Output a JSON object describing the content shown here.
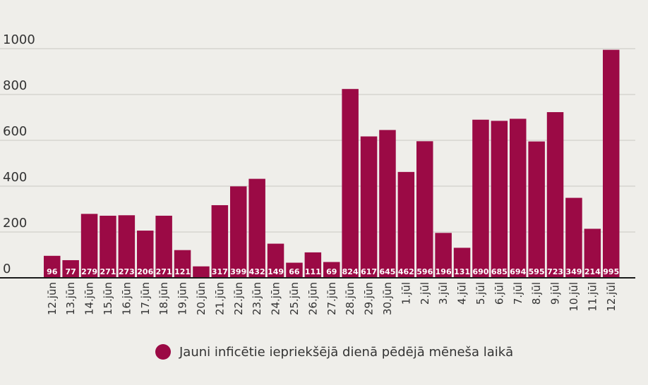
{
  "chart_data": {
    "type": "bar",
    "categories": [
      "12.jūn",
      "13.jūn",
      "14.jūn",
      "15.jūn",
      "16.jūn",
      "17.jūn",
      "18.jūn",
      "19.jūn",
      "20.jūn",
      "21.jūn",
      "22.jūn",
      "23.jūn",
      "24.jūn",
      "25.jūn",
      "26.jūn",
      "27.jūn",
      "28.jūn",
      "29.jūn",
      "30.jūn",
      "1.jūl",
      "2.jūl",
      "3.jūl",
      "4.jūl",
      "5.jūl",
      "6.jūl",
      "7.jūl",
      "8.jūl",
      "9.jūl",
      "10.jūl",
      "11.jūl",
      "12.jūl"
    ],
    "series": [
      {
        "name": "Jauni inficētie iepriekšējā dienā pēdējā mēneša laikā",
        "values": [
          96,
          77,
          279,
          271,
          273,
          206,
          271,
          121,
          50,
          317,
          399,
          432,
          149,
          66,
          111,
          69,
          824,
          617,
          645,
          462,
          596,
          196,
          131,
          690,
          685,
          694,
          595,
          723,
          349,
          214,
          995
        ],
        "labels": [
          "96",
          "77",
          "279",
          "271",
          "273",
          "206",
          "271",
          "121",
          "",
          "317",
          "399",
          "432",
          "149",
          "66",
          "111",
          "69",
          "824",
          "617",
          "645",
          "462",
          "596",
          "196",
          "131",
          "690",
          "685",
          "694",
          "595",
          "723",
          "349",
          "214",
          "995"
        ]
      }
    ],
    "yticks": [
      "0",
      "200",
      "400",
      "600",
      "800",
      "1000"
    ],
    "ylim": [
      0,
      1000
    ],
    "grid": true,
    "legend_position": "bottom",
    "colors": {
      "bar": "#9b0a45",
      "grid": "#c9c8c3",
      "axis": "#1a1a1a"
    }
  }
}
